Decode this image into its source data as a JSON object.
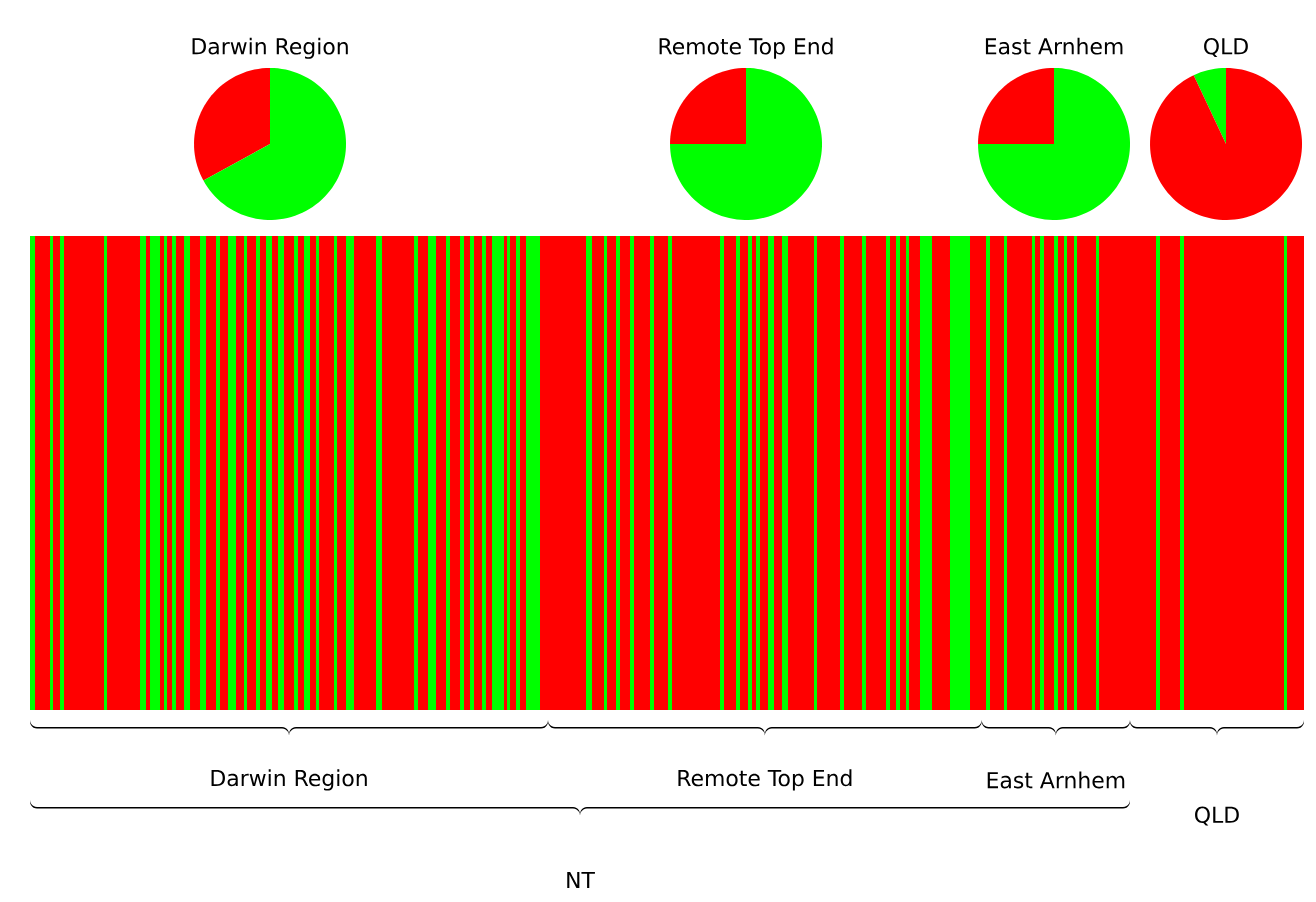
{
  "chart_data": [
    {
      "type": "pie",
      "title": "Darwin Region",
      "categories": [
        null,
        null
      ],
      "values": [
        33,
        67
      ],
      "colors": [
        "#ff0000",
        "#00ff00"
      ]
    },
    {
      "type": "pie",
      "title": "Remote Top End",
      "categories": [
        null,
        null
      ],
      "values": [
        25,
        75
      ],
      "colors": [
        "#ff0000",
        "#00ff00"
      ]
    },
    {
      "type": "pie",
      "title": "East Arnhem",
      "categories": [
        null,
        null
      ],
      "values": [
        25,
        75
      ],
      "colors": [
        "#ff0000",
        "#00ff00"
      ]
    },
    {
      "type": "pie",
      "title": "QLD",
      "categories": [
        null,
        null
      ],
      "values": [
        7,
        93
      ],
      "colors": [
        "#00ff00",
        "#ff0000"
      ]
    },
    {
      "type": "other",
      "annotations": [
        "Darwin Region",
        "Remote Top End",
        "East Arnhem",
        "QLD",
        "NT"
      ]
    }
  ]
}
